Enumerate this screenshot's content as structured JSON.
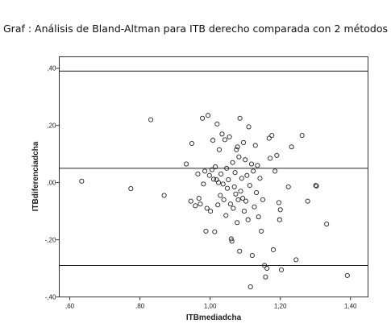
{
  "chart_data": {
    "type": "scatter",
    "title": "Graf : Análisis de Bland-Altman para ITB derecho comparada con 2 métodos",
    "xlabel": "ITBmediadcha",
    "ylabel": "ITBdiferenciadcha",
    "xlim": [
      0.57,
      1.45
    ],
    "ylim": [
      -0.4,
      0.44
    ],
    "xticks": [
      0.6,
      0.8,
      1.0,
      1.2,
      1.4
    ],
    "xtick_labels": [
      ",60",
      ",80",
      "1,00",
      "1,20",
      "1,40"
    ],
    "yticks": [
      -0.4,
      -0.2,
      0.0,
      0.2,
      0.4
    ],
    "ytick_labels": [
      "-,40",
      "-,20",
      ",00",
      ",20",
      ",40"
    ],
    "grid": false,
    "reference_lines": [
      0.39,
      0.05,
      -0.29
    ],
    "points": [
      {
        "x": 0.634,
        "y": 0.005
      },
      {
        "x": 0.774,
        "y": -0.021
      },
      {
        "x": 0.831,
        "y": 0.22
      },
      {
        "x": 0.869,
        "y": -0.045
      },
      {
        "x": 0.932,
        "y": 0.065
      },
      {
        "x": 0.945,
        "y": -0.065
      },
      {
        "x": 0.948,
        "y": 0.137
      },
      {
        "x": 0.958,
        "y": -0.081
      },
      {
        "x": 0.965,
        "y": 0.03
      },
      {
        "x": 0.968,
        "y": -0.055
      },
      {
        "x": 0.972,
        "y": -0.075
      },
      {
        "x": 0.978,
        "y": 0.225
      },
      {
        "x": 0.981,
        "y": -0.005
      },
      {
        "x": 0.985,
        "y": 0.04
      },
      {
        "x": 0.988,
        "y": -0.17
      },
      {
        "x": 0.991,
        "y": -0.09
      },
      {
        "x": 0.994,
        "y": 0.235
      },
      {
        "x": 0.998,
        "y": 0.025
      },
      {
        "x": 1.001,
        "y": -0.1
      },
      {
        "x": 1.005,
        "y": 0.045
      },
      {
        "x": 1.008,
        "y": 0.148
      },
      {
        "x": 1.01,
        "y": 0.012
      },
      {
        "x": 1.013,
        "y": -0.172
      },
      {
        "x": 1.015,
        "y": 0.055
      },
      {
        "x": 1.018,
        "y": 0.01
      },
      {
        "x": 1.02,
        "y": 0.205
      },
      {
        "x": 1.022,
        "y": -0.078
      },
      {
        "x": 1.024,
        "y": 0.0
      },
      {
        "x": 1.026,
        "y": 0.115
      },
      {
        "x": 1.029,
        "y": -0.045
      },
      {
        "x": 1.031,
        "y": 0.03
      },
      {
        "x": 1.034,
        "y": 0.17
      },
      {
        "x": 1.037,
        "y": -0.005
      },
      {
        "x": 1.039,
        "y": -0.06
      },
      {
        "x": 1.042,
        "y": 0.15
      },
      {
        "x": 1.045,
        "y": -0.115
      },
      {
        "x": 1.047,
        "y": 0.05
      },
      {
        "x": 1.049,
        "y": -0.02
      },
      {
        "x": 1.052,
        "y": 0.01
      },
      {
        "x": 1.055,
        "y": 0.16
      },
      {
        "x": 1.058,
        "y": -0.075
      },
      {
        "x": 1.06,
        "y": -0.197
      },
      {
        "x": 1.062,
        "y": -0.205
      },
      {
        "x": 1.064,
        "y": 0.07
      },
      {
        "x": 1.066,
        "y": -0.09
      },
      {
        "x": 1.069,
        "y": -0.015
      },
      {
        "x": 1.071,
        "y": 0.035
      },
      {
        "x": 1.073,
        "y": -0.04
      },
      {
        "x": 1.075,
        "y": 0.115
      },
      {
        "x": 1.077,
        "y": -0.14
      },
      {
        "x": 1.078,
        "y": 0.125
      },
      {
        "x": 1.08,
        "y": -0.06
      },
      {
        "x": 1.082,
        "y": 0.09
      },
      {
        "x": 1.084,
        "y": -0.24
      },
      {
        "x": 1.085,
        "y": 0.225
      },
      {
        "x": 1.087,
        "y": -0.03
      },
      {
        "x": 1.09,
        "y": 0.015
      },
      {
        "x": 1.093,
        "y": -0.055
      },
      {
        "x": 1.095,
        "y": 0.14
      },
      {
        "x": 1.097,
        "y": -0.1
      },
      {
        "x": 1.1,
        "y": 0.08
      },
      {
        "x": 1.102,
        "y": -0.065
      },
      {
        "x": 1.105,
        "y": 0.025
      },
      {
        "x": 1.108,
        "y": -0.13
      },
      {
        "x": 1.11,
        "y": 0.195
      },
      {
        "x": 1.113,
        "y": -0.01
      },
      {
        "x": 1.115,
        "y": -0.365
      },
      {
        "x": 1.118,
        "y": 0.065
      },
      {
        "x": 1.12,
        "y": -0.255
      },
      {
        "x": 1.123,
        "y": 0.04
      },
      {
        "x": 1.126,
        "y": -0.085
      },
      {
        "x": 1.129,
        "y": 0.13
      },
      {
        "x": 1.132,
        "y": -0.035
      },
      {
        "x": 1.135,
        "y": 0.06
      },
      {
        "x": 1.138,
        "y": -0.12
      },
      {
        "x": 1.142,
        "y": 0.015
      },
      {
        "x": 1.146,
        "y": -0.17
      },
      {
        "x": 1.15,
        "y": -0.06
      },
      {
        "x": 1.155,
        "y": -0.29
      },
      {
        "x": 1.158,
        "y": -0.33
      },
      {
        "x": 1.162,
        "y": -0.3
      },
      {
        "x": 1.168,
        "y": 0.155
      },
      {
        "x": 1.171,
        "y": 0.085
      },
      {
        "x": 1.176,
        "y": 0.165
      },
      {
        "x": 1.18,
        "y": -0.235
      },
      {
        "x": 1.185,
        "y": 0.04
      },
      {
        "x": 1.19,
        "y": 0.095
      },
      {
        "x": 1.196,
        "y": -0.07
      },
      {
        "x": 1.198,
        "y": -0.13
      },
      {
        "x": 1.2,
        "y": -0.095
      },
      {
        "x": 1.203,
        "y": -0.305
      },
      {
        "x": 1.223,
        "y": -0.015
      },
      {
        "x": 1.232,
        "y": 0.125
      },
      {
        "x": 1.245,
        "y": -0.27
      },
      {
        "x": 1.262,
        "y": 0.165
      },
      {
        "x": 1.278,
        "y": -0.065
      },
      {
        "x": 1.301,
        "y": -0.01
      },
      {
        "x": 1.303,
        "y": -0.012
      },
      {
        "x": 1.332,
        "y": -0.145
      },
      {
        "x": 1.391,
        "y": -0.325
      }
    ]
  }
}
